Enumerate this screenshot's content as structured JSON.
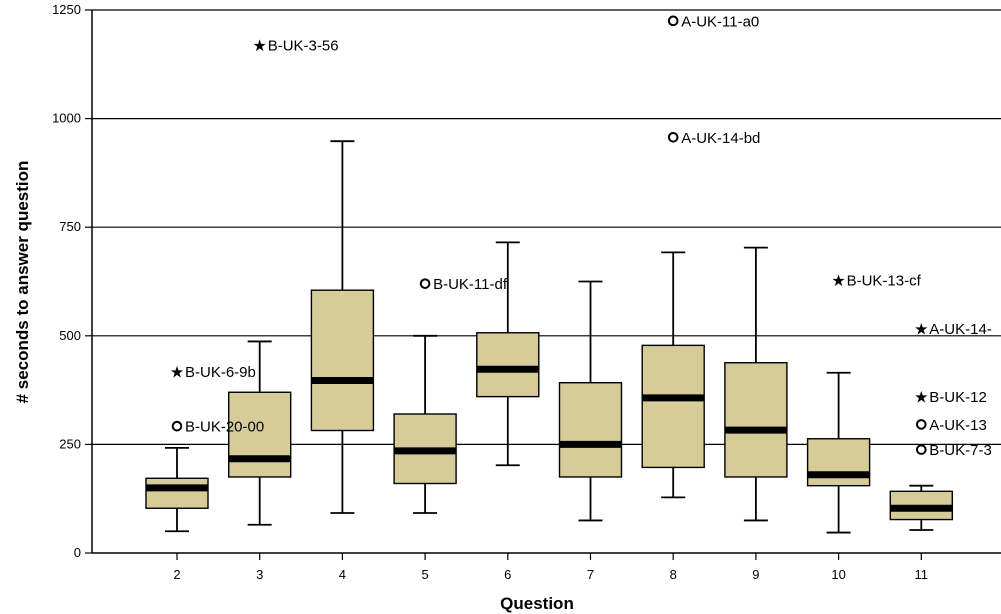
{
  "chart_data": {
    "type": "boxplot",
    "title": "",
    "xlabel": "Question",
    "ylabel": "# seconds to answer question",
    "ylim": [
      0,
      1250
    ],
    "y_ticks": [
      0,
      250,
      500,
      750,
      1000,
      1250
    ],
    "grid": "horizontal",
    "box_color": "#d6cc9a",
    "categories": [
      "2",
      "3",
      "4",
      "5",
      "6",
      "7",
      "8",
      "9",
      "10",
      "11"
    ],
    "boxes": [
      {
        "question": "2",
        "whisker_low": 50,
        "q1": 103,
        "median": 150,
        "q3": 172,
        "whisker_high": 242
      },
      {
        "question": "3",
        "whisker_low": 65,
        "q1": 175,
        "median": 217,
        "q3": 370,
        "whisker_high": 487
      },
      {
        "question": "4",
        "whisker_low": 92,
        "q1": 282,
        "median": 397,
        "q3": 605,
        "whisker_high": 948
      },
      {
        "question": "5",
        "whisker_low": 92,
        "q1": 160,
        "median": 235,
        "q3": 320,
        "whisker_high": 500
      },
      {
        "question": "6",
        "whisker_low": 202,
        "q1": 360,
        "median": 423,
        "q3": 507,
        "whisker_high": 715
      },
      {
        "question": "7",
        "whisker_low": 75,
        "q1": 175,
        "median": 250,
        "q3": 392,
        "whisker_high": 625
      },
      {
        "question": "8",
        "whisker_low": 128,
        "q1": 197,
        "median": 357,
        "q3": 478,
        "whisker_high": 692
      },
      {
        "question": "9",
        "whisker_low": 75,
        "q1": 175,
        "median": 283,
        "q3": 438,
        "whisker_high": 703
      },
      {
        "question": "10",
        "whisker_low": 47,
        "q1": 155,
        "median": 180,
        "q3": 263,
        "whisker_high": 415
      },
      {
        "question": "11",
        "whisker_low": 53,
        "q1": 77,
        "median": 103,
        "q3": 142,
        "whisker_high": 155
      }
    ],
    "outliers": [
      {
        "question": "2",
        "value": 418,
        "marker": "star",
        "label": "B-UK-6-9b"
      },
      {
        "question": "2",
        "value": 292,
        "marker": "circle",
        "label": "B-UK-20-00"
      },
      {
        "question": "3",
        "value": 1170,
        "marker": "star",
        "label": "B-UK-3-56"
      },
      {
        "question": "5",
        "value": 620,
        "marker": "circle",
        "label": "B-UK-11-df"
      },
      {
        "question": "8",
        "value": 1225,
        "marker": "circle",
        "label": "A-UK-11-a0"
      },
      {
        "question": "8",
        "value": 957,
        "marker": "circle",
        "label": "A-UK-14-bd"
      },
      {
        "question": "10",
        "value": 628,
        "marker": "star",
        "label": "B-UK-13-cf"
      },
      {
        "question": "11",
        "value": 517,
        "marker": "star",
        "label": "A-UK-14-"
      },
      {
        "question": "11",
        "value": 360,
        "marker": "star",
        "label": "B-UK-12"
      },
      {
        "question": "11",
        "value": 296,
        "marker": "circle",
        "label": "A-UK-13"
      },
      {
        "question": "11",
        "value": 238,
        "marker": "circle",
        "label": "B-UK-7-3"
      }
    ]
  }
}
